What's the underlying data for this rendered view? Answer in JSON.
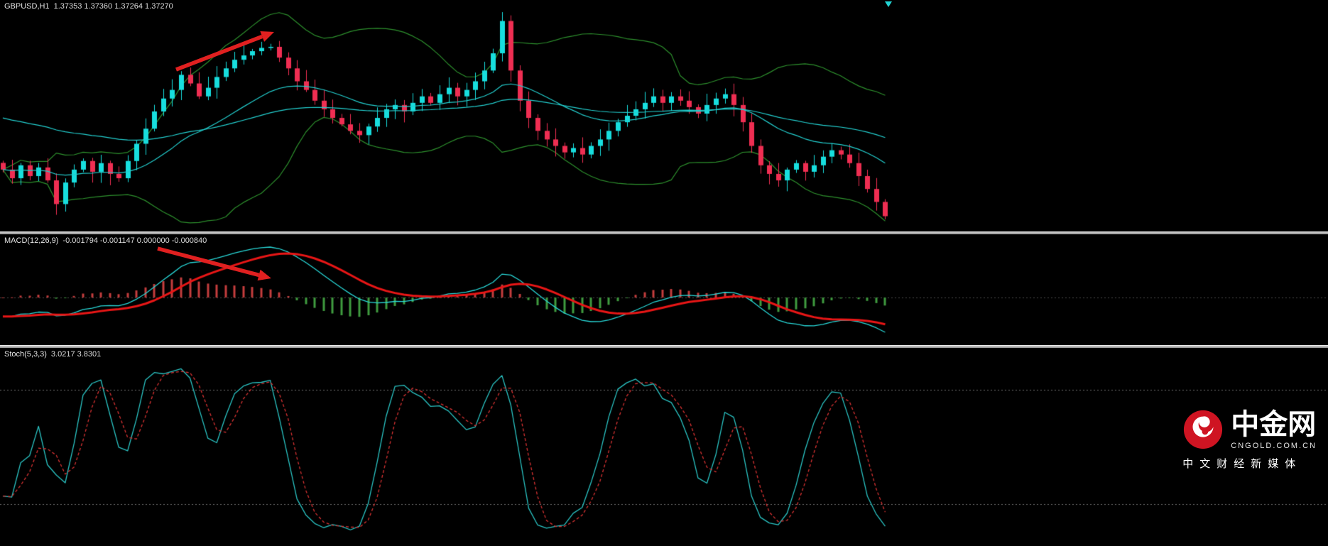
{
  "header": {
    "symbol": "GBPUSD,H1",
    "quote": "1.37353 1.37360 1.37264 1.37270"
  },
  "panels": {
    "macd": {
      "name": "MACD(12,26,9)",
      "values": "-0.001794 -0.001147 0.000000 -0.000840"
    },
    "stoch": {
      "name": "Stoch(5,3,3)",
      "values": "3.0217 3.8301"
    }
  },
  "watermark": {
    "title": "中金网",
    "domain": "CNGOLD.COM.CN",
    "tagline": "中文财经新媒体",
    "brand_color": "#cf1422"
  },
  "chart_data": [
    {
      "type": "candlestick",
      "panel": "main",
      "title": "GBPUSD,H1",
      "quote": {
        "open": "1.37353",
        "high": "1.37360",
        "low": "1.37264",
        "close": "1.37270"
      },
      "bull_color": "#17dede",
      "bear_color": "#ef2e52",
      "closes": [
        1.37616,
        1.37552,
        1.37648,
        1.37568,
        1.37632,
        1.37536,
        1.3736,
        1.3752,
        1.37616,
        1.3768,
        1.376,
        1.37664,
        1.37584,
        1.37552,
        1.3768,
        1.37808,
        1.3792,
        1.38048,
        1.38144,
        1.38208,
        1.3832,
        1.38256,
        1.3816,
        1.38224,
        1.38304,
        1.38368,
        1.38432,
        1.38464,
        1.38496,
        1.3852,
        1.38528,
        1.38448,
        1.38368,
        1.38272,
        1.38208,
        1.38128,
        1.38064,
        1.38,
        1.37952,
        1.37904,
        1.37872,
        1.37936,
        1.38,
        1.38064,
        1.38096,
        1.38048,
        1.38112,
        1.3816,
        1.38112,
        1.38176,
        1.38224,
        1.3816,
        1.38208,
        1.38272,
        1.38352,
        1.3848,
        1.3872,
        1.38352,
        1.38128,
        1.38,
        1.37904,
        1.3784,
        1.37792,
        1.37744,
        1.37776,
        1.37728,
        1.37792,
        1.3784,
        1.37904,
        1.37968,
        1.38016,
        1.38064,
        1.38112,
        1.3816,
        1.38112,
        1.3816,
        1.38128,
        1.3808,
        1.38032,
        1.38096,
        1.38144,
        1.38176,
        1.38096,
        1.37968,
        1.37792,
        1.37648,
        1.37584,
        1.37536,
        1.37616,
        1.37664,
        1.376,
        1.37648,
        1.37712,
        1.3776,
        1.37728,
        1.37664,
        1.37568,
        1.37472,
        1.37376,
        1.3727
      ],
      "overlays": [
        {
          "name": "bollinger-bands",
          "period": 20,
          "deviation": 2,
          "color": "#2d8f2d"
        },
        {
          "name": "ma-fast",
          "period": 20,
          "color": "#23cfcf"
        },
        {
          "name": "ma-slow",
          "period": 55,
          "seed": 1.38,
          "color": "#23cfcf"
        }
      ],
      "annotations": [
        {
          "type": "arrow",
          "from": [
            248,
            98
          ],
          "to": [
            386,
            45
          ],
          "color": "#e02020"
        }
      ]
    },
    {
      "type": "line+bar",
      "panel": "macd",
      "label": "MACD(12,26,9)",
      "values_text": "-0.001794 -0.001147 0.000000 -0.000840",
      "params": {
        "fast": 12,
        "slow": 26,
        "signal": 9
      },
      "derived_from": "closes",
      "colors": {
        "macd_line": "#28d7d7",
        "signal_line": "#e81616",
        "hist_up": "#c43d3d",
        "hist_down": "#3f9b3f",
        "zero_line": "#4a4a4a"
      },
      "annotations": [
        {
          "type": "arrow",
          "from": [
            222,
            20
          ],
          "to": [
            382,
            62
          ],
          "color": "#e02020"
        }
      ]
    },
    {
      "type": "line",
      "panel": "stoch",
      "label": "Stoch(5,3,3)",
      "values_text": "3.0217 3.8301",
      "params": {
        "k": 5,
        "slowing": 3,
        "d": 3
      },
      "levels": [
        20,
        80
      ],
      "colors": {
        "k_line": "#2ac4c4",
        "d_line": "#d83232",
        "level_line": "#6f6f6f"
      }
    }
  ]
}
